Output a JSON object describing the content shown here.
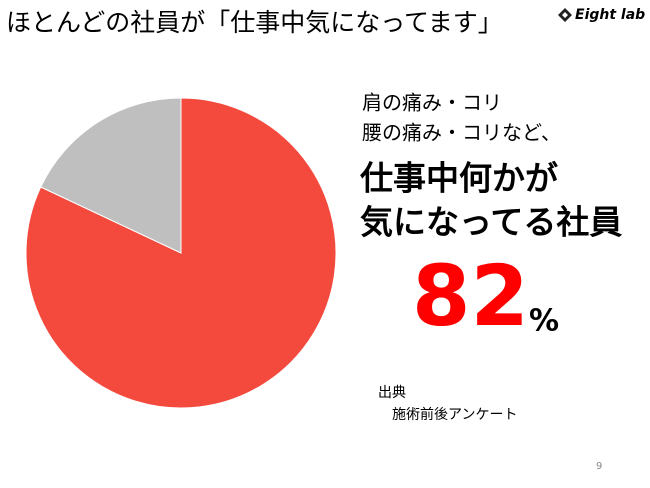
{
  "chart_data": {
    "type": "pie",
    "title": "ほとんどの社員が「仕事中気になってます」",
    "logo": "Eight lab",
    "values": [
      82,
      18
    ],
    "colors": [
      "#f44a3e",
      "#bfbfbf"
    ],
    "text_lines": [
      "肩の痛み・コリ",
      "腰の痛み・コリなど、"
    ],
    "headline_lines": [
      "仕事中何かが",
      "気になってる社員"
    ],
    "highlight": {
      "number": "82",
      "unit": "%"
    },
    "source_title": "出典",
    "source": "施術前後アンケート",
    "page_number": "9"
  }
}
